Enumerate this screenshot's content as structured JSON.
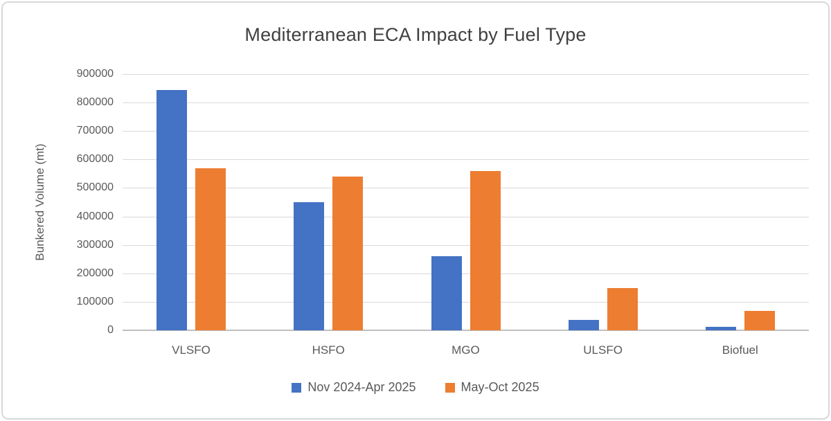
{
  "chart_data": {
    "type": "bar",
    "title": "Mediterranean ECA Impact by Fuel Type",
    "xlabel": "",
    "ylabel": "Bunkered Volume (mt)",
    "categories": [
      "VLSFO",
      "HSFO",
      "MGO",
      "ULSFO",
      "Biofuel"
    ],
    "series": [
      {
        "name": "Nov 2024-Apr 2025",
        "color": "#4472C4",
        "values": [
          845000,
          450000,
          260000,
          36000,
          12000
        ]
      },
      {
        "name": "May-Oct 2025",
        "color": "#ED7D31",
        "values": [
          570000,
          540000,
          560000,
          148000,
          68000
        ]
      }
    ],
    "ylim": [
      0,
      900000
    ],
    "ytick_step": 100000,
    "grid": true,
    "legend_position": "bottom"
  },
  "colors": {
    "title_text": "#404040",
    "axis_text": "#595959",
    "gridline": "#D9D9D9",
    "axis_line": "#BFBFBF",
    "series_blue": "#4472C4",
    "series_orange": "#ED7D31",
    "border": "#D8D8D8",
    "background": "#FFFFFF"
  }
}
